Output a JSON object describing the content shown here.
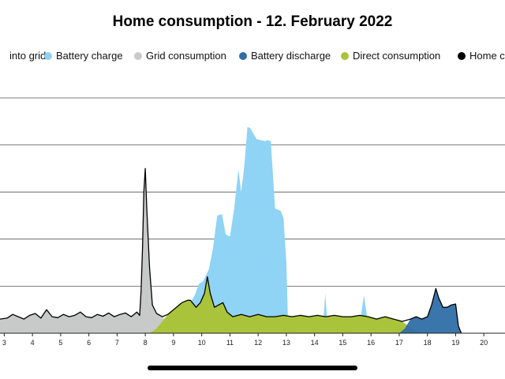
{
  "chart_data": {
    "type": "area",
    "title": "Home consumption - 12. February 2022",
    "xlabel": "",
    "ylabel": "",
    "x_ticks": [
      "3",
      "4",
      "5",
      "6",
      "7",
      "8",
      "9",
      "10",
      "11",
      "12",
      "13",
      "14",
      "15",
      "16",
      "17",
      "18",
      "19",
      "20"
    ],
    "xlim": [
      2.85,
      20.75
    ],
    "ylim": [
      0,
      5
    ],
    "grid": "horizontal",
    "legend_position": "top",
    "legend": [
      {
        "label": "into grid",
        "color": "#8c7a4a"
      },
      {
        "label": "Battery charge",
        "color": "#8fd3f5"
      },
      {
        "label": "Grid consumption",
        "color": "#c8c9c9"
      },
      {
        "label": "Battery discharge",
        "color": "#2f6ea6"
      },
      {
        "label": "Direct consumption",
        "color": "#a9c43a"
      },
      {
        "label": "Home c",
        "color": "#000000"
      }
    ],
    "series": [
      {
        "name": "Grid consumption",
        "color": "#c8c9c9",
        "points": [
          [
            2.85,
            0.3
          ],
          [
            3.1,
            0.32
          ],
          [
            3.3,
            0.4
          ],
          [
            3.5,
            0.35
          ],
          [
            3.7,
            0.3
          ],
          [
            3.9,
            0.38
          ],
          [
            4.1,
            0.42
          ],
          [
            4.3,
            0.32
          ],
          [
            4.5,
            0.5
          ],
          [
            4.7,
            0.35
          ],
          [
            4.9,
            0.33
          ],
          [
            5.1,
            0.4
          ],
          [
            5.3,
            0.35
          ],
          [
            5.5,
            0.38
          ],
          [
            5.7,
            0.45
          ],
          [
            5.9,
            0.35
          ],
          [
            6.1,
            0.33
          ],
          [
            6.3,
            0.4
          ],
          [
            6.5,
            0.36
          ],
          [
            6.7,
            0.43
          ],
          [
            6.9,
            0.35
          ],
          [
            7.1,
            0.4
          ],
          [
            7.3,
            0.43
          ],
          [
            7.5,
            0.35
          ],
          [
            7.7,
            0.45
          ],
          [
            7.8,
            0.38
          ],
          [
            7.85,
            0.9
          ],
          [
            7.9,
            1.8
          ],
          [
            7.95,
            3.0
          ],
          [
            8.0,
            3.5
          ],
          [
            8.05,
            2.7
          ],
          [
            8.15,
            1.4
          ],
          [
            8.25,
            0.6
          ],
          [
            8.4,
            0.42
          ],
          [
            8.55,
            0.35
          ],
          [
            8.7,
            0.3
          ],
          [
            8.85,
            0.25
          ],
          [
            9.0,
            0.2
          ],
          [
            9.15,
            0.1
          ],
          [
            9.3,
            0.0
          ]
        ]
      },
      {
        "name": "Battery charge",
        "color": "#8fd3f5",
        "points": [
          [
            9.0,
            0.0
          ],
          [
            9.3,
            0.3
          ],
          [
            9.55,
            0.6
          ],
          [
            9.75,
            0.8
          ],
          [
            9.9,
            1.05
          ],
          [
            10.05,
            1.1
          ],
          [
            10.25,
            1.35
          ],
          [
            10.4,
            1.8
          ],
          [
            10.55,
            2.5
          ],
          [
            10.72,
            2.53
          ],
          [
            10.85,
            2.1
          ],
          [
            11.0,
            2.05
          ],
          [
            11.15,
            2.65
          ],
          [
            11.3,
            3.48
          ],
          [
            11.4,
            3.0
          ],
          [
            11.5,
            3.5
          ],
          [
            11.62,
            4.38
          ],
          [
            11.72,
            4.36
          ],
          [
            11.82,
            4.25
          ],
          [
            11.95,
            4.12
          ],
          [
            12.1,
            4.1
          ],
          [
            12.25,
            4.08
          ],
          [
            12.32,
            4.1
          ],
          [
            12.45,
            4.08
          ],
          [
            12.6,
            2.65
          ],
          [
            12.8,
            2.6
          ],
          [
            12.9,
            2.45
          ],
          [
            13.0,
            1.5
          ],
          [
            13.05,
            0.4
          ],
          [
            13.1,
            0.0
          ],
          [
            14.25,
            0.0
          ],
          [
            14.33,
            0.42
          ],
          [
            14.38,
            0.85
          ],
          [
            14.43,
            0.42
          ],
          [
            14.5,
            0.0
          ],
          [
            15.55,
            0.0
          ],
          [
            15.65,
            0.4
          ],
          [
            15.75,
            0.8
          ],
          [
            15.85,
            0.4
          ],
          [
            15.95,
            0.0
          ]
        ]
      },
      {
        "name": "Direct consumption",
        "color": "#a9c43a",
        "points": [
          [
            8.15,
            0.0
          ],
          [
            8.4,
            0.1
          ],
          [
            8.6,
            0.25
          ],
          [
            8.8,
            0.4
          ],
          [
            9.1,
            0.55
          ],
          [
            9.3,
            0.65
          ],
          [
            9.5,
            0.7
          ],
          [
            9.6,
            0.7
          ],
          [
            9.8,
            0.55
          ],
          [
            9.95,
            0.65
          ],
          [
            10.1,
            0.85
          ],
          [
            10.2,
            1.2
          ],
          [
            10.3,
            0.85
          ],
          [
            10.45,
            0.55
          ],
          [
            10.6,
            0.6
          ],
          [
            10.75,
            0.65
          ],
          [
            10.9,
            0.45
          ],
          [
            11.1,
            0.35
          ],
          [
            11.4,
            0.4
          ],
          [
            11.7,
            0.35
          ],
          [
            12.0,
            0.4
          ],
          [
            12.3,
            0.35
          ],
          [
            12.6,
            0.35
          ],
          [
            12.9,
            0.38
          ],
          [
            13.2,
            0.35
          ],
          [
            13.5,
            0.38
          ],
          [
            13.8,
            0.35
          ],
          [
            14.1,
            0.38
          ],
          [
            14.4,
            0.35
          ],
          [
            14.7,
            0.38
          ],
          [
            15.0,
            0.35
          ],
          [
            15.3,
            0.35
          ],
          [
            15.6,
            0.38
          ],
          [
            15.9,
            0.35
          ],
          [
            16.2,
            0.3
          ],
          [
            16.5,
            0.35
          ],
          [
            16.8,
            0.3
          ],
          [
            17.1,
            0.25
          ],
          [
            17.4,
            0.12
          ],
          [
            17.6,
            0.05
          ],
          [
            17.8,
            0.0
          ]
        ]
      },
      {
        "name": "Battery discharge",
        "color": "#2f6ea6",
        "points": [
          [
            17.0,
            0.0
          ],
          [
            17.2,
            0.1
          ],
          [
            17.4,
            0.3
          ],
          [
            17.6,
            0.35
          ],
          [
            17.8,
            0.3
          ],
          [
            18.0,
            0.35
          ],
          [
            18.15,
            0.6
          ],
          [
            18.3,
            0.95
          ],
          [
            18.4,
            0.75
          ],
          [
            18.55,
            0.55
          ],
          [
            18.7,
            0.55
          ],
          [
            18.85,
            0.6
          ],
          [
            19.0,
            0.62
          ],
          [
            19.1,
            0.15
          ],
          [
            19.2,
            0.0
          ]
        ]
      },
      {
        "name": "Home c",
        "color": "#000000",
        "points": [
          [
            2.85,
            0.3
          ],
          [
            3.1,
            0.32
          ],
          [
            3.3,
            0.4
          ],
          [
            3.5,
            0.35
          ],
          [
            3.7,
            0.3
          ],
          [
            3.9,
            0.38
          ],
          [
            4.1,
            0.42
          ],
          [
            4.3,
            0.32
          ],
          [
            4.5,
            0.5
          ],
          [
            4.7,
            0.35
          ],
          [
            4.9,
            0.33
          ],
          [
            5.1,
            0.4
          ],
          [
            5.3,
            0.35
          ],
          [
            5.5,
            0.38
          ],
          [
            5.7,
            0.45
          ],
          [
            5.9,
            0.35
          ],
          [
            6.1,
            0.33
          ],
          [
            6.3,
            0.4
          ],
          [
            6.5,
            0.36
          ],
          [
            6.7,
            0.43
          ],
          [
            6.9,
            0.35
          ],
          [
            7.1,
            0.4
          ],
          [
            7.3,
            0.43
          ],
          [
            7.5,
            0.35
          ],
          [
            7.7,
            0.45
          ],
          [
            7.8,
            0.38
          ],
          [
            7.85,
            0.9
          ],
          [
            7.9,
            1.8
          ],
          [
            7.95,
            3.0
          ],
          [
            8.0,
            3.5
          ],
          [
            8.05,
            2.7
          ],
          [
            8.15,
            1.4
          ],
          [
            8.25,
            0.6
          ],
          [
            8.4,
            0.42
          ],
          [
            8.6,
            0.35
          ],
          [
            8.8,
            0.4
          ],
          [
            9.1,
            0.55
          ],
          [
            9.3,
            0.65
          ],
          [
            9.5,
            0.7
          ],
          [
            9.6,
            0.7
          ],
          [
            9.8,
            0.55
          ],
          [
            9.95,
            0.65
          ],
          [
            10.1,
            0.85
          ],
          [
            10.2,
            1.2
          ],
          [
            10.3,
            0.85
          ],
          [
            10.45,
            0.55
          ],
          [
            10.6,
            0.6
          ],
          [
            10.75,
            0.65
          ],
          [
            10.9,
            0.45
          ],
          [
            11.1,
            0.35
          ],
          [
            11.4,
            0.4
          ],
          [
            11.7,
            0.35
          ],
          [
            12.0,
            0.4
          ],
          [
            12.3,
            0.35
          ],
          [
            12.6,
            0.35
          ],
          [
            12.9,
            0.38
          ],
          [
            13.2,
            0.35
          ],
          [
            13.5,
            0.38
          ],
          [
            13.8,
            0.35
          ],
          [
            14.1,
            0.38
          ],
          [
            14.4,
            0.35
          ],
          [
            14.7,
            0.38
          ],
          [
            15.0,
            0.35
          ],
          [
            15.3,
            0.35
          ],
          [
            15.6,
            0.38
          ],
          [
            15.9,
            0.35
          ],
          [
            16.2,
            0.3
          ],
          [
            16.5,
            0.35
          ],
          [
            16.8,
            0.3
          ],
          [
            17.1,
            0.25
          ],
          [
            17.4,
            0.3
          ],
          [
            17.6,
            0.35
          ],
          [
            17.8,
            0.3
          ],
          [
            18.0,
            0.35
          ],
          [
            18.15,
            0.6
          ],
          [
            18.3,
            0.95
          ],
          [
            18.4,
            0.75
          ],
          [
            18.55,
            0.55
          ],
          [
            18.7,
            0.55
          ],
          [
            18.85,
            0.6
          ],
          [
            19.0,
            0.62
          ],
          [
            19.1,
            0.15
          ],
          [
            19.2,
            0.0
          ]
        ]
      }
    ]
  }
}
